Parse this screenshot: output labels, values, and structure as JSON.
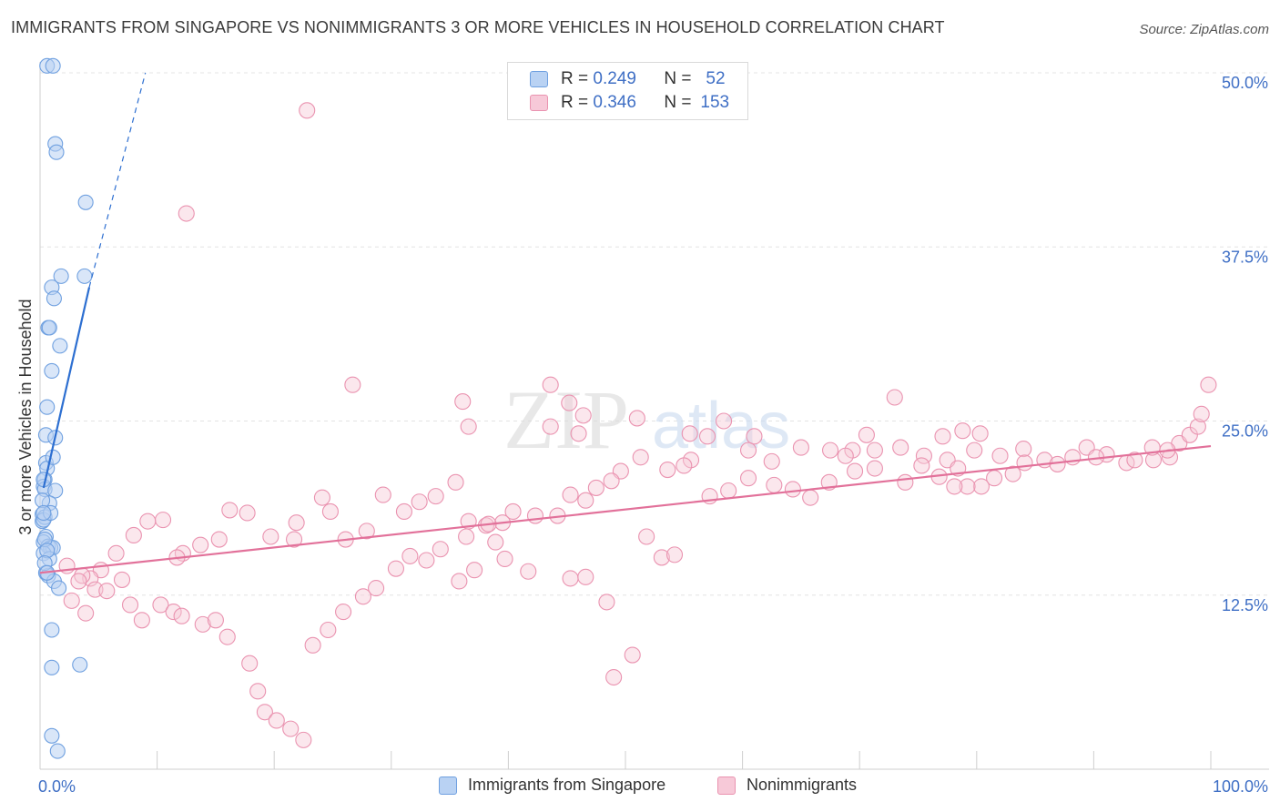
{
  "header": {
    "title": "IMMIGRANTS FROM SINGAPORE VS NONIMMIGRANTS 3 OR MORE VEHICLES IN HOUSEHOLD CORRELATION CHART",
    "source": "Source: ZipAtlas.com"
  },
  "legend_top": {
    "rows": [
      {
        "r_label": "R = ",
        "r_value": "0.249",
        "n_label": "N = ",
        "n_value": "52"
      },
      {
        "r_label": "R = ",
        "r_value": "0.346",
        "n_label": "N = ",
        "n_value": "153"
      }
    ]
  },
  "watermark": {
    "part1": "ZIP",
    "part2": "atlas"
  },
  "colors": {
    "blue": "#6fa0e0",
    "blue_fill": "#b9d2f3",
    "blue_line": "#2d6fd1",
    "pink": "#ea93b0",
    "pink_fill": "#f7c9d8",
    "pink_line": "#e2719a",
    "grid": "#e4e4e4",
    "tick_text": "#3f6fc5"
  },
  "chart_data": {
    "type": "scatter",
    "title": "IMMIGRANTS FROM SINGAPORE VS NONIMMIGRANTS 3 OR MORE VEHICLES IN HOUSEHOLD CORRELATION CHART",
    "xlabel": "",
    "ylabel": "3 or more Vehicles in Household",
    "xlim": [
      0,
      100
    ],
    "ylim": [
      0,
      50
    ],
    "x_tick_labels": [
      "0.0%",
      "100.0%"
    ],
    "y_ticks": [
      12.5,
      25.0,
      37.5,
      50.0
    ],
    "y_tick_labels": [
      "12.5%",
      "25.0%",
      "37.5%",
      "50.0%"
    ],
    "grid": "horizontal dashed",
    "legend": "bottom-center",
    "series": [
      {
        "name": "Immigrants from Singapore",
        "color": "#6fa0e0",
        "R": 0.249,
        "N": 52,
        "trend": {
          "x": [
            0.3,
            4.2
          ],
          "y": [
            20.2,
            34.6
          ]
        },
        "trend_extension": {
          "x": [
            4.2,
            9.0
          ],
          "y": [
            34.6,
            50.0
          ]
        },
        "points": [
          [
            0.6,
            50.5
          ],
          [
            1.1,
            50.5
          ],
          [
            1.3,
            44.9
          ],
          [
            1.4,
            44.3
          ],
          [
            3.9,
            40.7
          ],
          [
            1.8,
            35.4
          ],
          [
            3.8,
            35.4
          ],
          [
            1.0,
            34.6
          ],
          [
            1.2,
            33.8
          ],
          [
            0.7,
            31.7
          ],
          [
            0.8,
            31.7
          ],
          [
            1.7,
            30.4
          ],
          [
            1.0,
            28.6
          ],
          [
            0.6,
            26.0
          ],
          [
            0.5,
            24.0
          ],
          [
            1.3,
            23.8
          ],
          [
            0.5,
            22.0
          ],
          [
            0.6,
            21.6
          ],
          [
            0.4,
            20.8
          ],
          [
            0.3,
            20.3
          ],
          [
            0.4,
            20.1
          ],
          [
            1.3,
            20.0
          ],
          [
            0.8,
            19.1
          ],
          [
            0.2,
            18.3
          ],
          [
            0.2,
            17.8
          ],
          [
            0.4,
            18.1
          ],
          [
            0.5,
            16.7
          ],
          [
            0.3,
            16.3
          ],
          [
            0.7,
            16.0
          ],
          [
            0.9,
            15.9
          ],
          [
            1.1,
            15.9
          ],
          [
            0.3,
            15.5
          ],
          [
            0.8,
            15.1
          ],
          [
            0.5,
            14.1
          ],
          [
            0.7,
            13.9
          ],
          [
            1.2,
            13.5
          ],
          [
            1.6,
            13.0
          ],
          [
            1.0,
            10.0
          ],
          [
            3.4,
            7.5
          ],
          [
            1.0,
            7.3
          ],
          [
            1.0,
            2.4
          ],
          [
            1.5,
            1.3
          ],
          [
            0.3,
            20.8
          ],
          [
            0.3,
            17.9
          ],
          [
            0.4,
            16.5
          ],
          [
            0.6,
            15.7
          ],
          [
            0.2,
            19.3
          ],
          [
            0.9,
            18.4
          ],
          [
            0.4,
            14.8
          ],
          [
            1.1,
            22.4
          ],
          [
            0.3,
            18.4
          ],
          [
            0.6,
            14.1
          ]
        ]
      },
      {
        "name": "Nonimmigrants",
        "color": "#ea93b0",
        "R": 0.346,
        "N": 153,
        "trend": {
          "x": [
            0.0,
            100.0
          ],
          "y": [
            14.1,
            23.2
          ]
        },
        "points": [
          [
            22.8,
            47.3
          ],
          [
            12.5,
            39.9
          ],
          [
            26.7,
            27.6
          ],
          [
            43.6,
            27.6
          ],
          [
            36.1,
            26.4
          ],
          [
            45.2,
            26.3
          ],
          [
            46.4,
            25.4
          ],
          [
            51.0,
            25.2
          ],
          [
            58.4,
            25.0
          ],
          [
            73.0,
            26.7
          ],
          [
            36.6,
            24.6
          ],
          [
            43.6,
            24.6
          ],
          [
            46.0,
            24.1
          ],
          [
            55.5,
            24.1
          ],
          [
            57.0,
            23.9
          ],
          [
            61.0,
            23.9
          ],
          [
            70.6,
            24.0
          ],
          [
            77.1,
            23.9
          ],
          [
            78.8,
            24.3
          ],
          [
            80.3,
            24.1
          ],
          [
            65.0,
            23.1
          ],
          [
            69.4,
            22.9
          ],
          [
            71.3,
            22.9
          ],
          [
            73.5,
            23.1
          ],
          [
            60.5,
            22.9
          ],
          [
            55.6,
            22.2
          ],
          [
            62.5,
            22.1
          ],
          [
            67.5,
            22.9
          ],
          [
            68.8,
            22.5
          ],
          [
            75.5,
            22.5
          ],
          [
            77.5,
            22.2
          ],
          [
            78.4,
            21.6
          ],
          [
            79.8,
            22.9
          ],
          [
            82.0,
            22.5
          ],
          [
            84.0,
            23.0
          ],
          [
            85.8,
            22.2
          ],
          [
            88.2,
            22.4
          ],
          [
            89.4,
            23.1
          ],
          [
            91.1,
            22.6
          ],
          [
            92.8,
            22.0
          ],
          [
            95.1,
            22.2
          ],
          [
            96.5,
            22.4
          ],
          [
            97.3,
            23.4
          ],
          [
            98.2,
            24.0
          ],
          [
            98.9,
            24.6
          ],
          [
            99.2,
            25.5
          ],
          [
            99.8,
            27.6
          ],
          [
            96.3,
            22.9
          ],
          [
            95.0,
            23.1
          ],
          [
            93.5,
            22.2
          ],
          [
            90.2,
            22.4
          ],
          [
            86.9,
            21.9
          ],
          [
            84.1,
            22.0
          ],
          [
            83.1,
            21.2
          ],
          [
            81.5,
            20.9
          ],
          [
            80.4,
            20.3
          ],
          [
            79.2,
            20.3
          ],
          [
            78.1,
            20.3
          ],
          [
            76.8,
            21.0
          ],
          [
            75.3,
            21.8
          ],
          [
            73.9,
            20.6
          ],
          [
            71.3,
            21.6
          ],
          [
            69.6,
            21.4
          ],
          [
            67.4,
            20.6
          ],
          [
            65.8,
            19.5
          ],
          [
            64.3,
            20.1
          ],
          [
            62.7,
            20.4
          ],
          [
            60.5,
            20.9
          ],
          [
            58.8,
            20.0
          ],
          [
            57.2,
            19.6
          ],
          [
            55.0,
            21.8
          ],
          [
            53.6,
            21.5
          ],
          [
            51.3,
            22.4
          ],
          [
            49.6,
            21.4
          ],
          [
            48.8,
            20.7
          ],
          [
            47.5,
            20.2
          ],
          [
            46.6,
            19.3
          ],
          [
            45.3,
            19.7
          ],
          [
            44.2,
            18.2
          ],
          [
            42.3,
            18.2
          ],
          [
            40.4,
            18.5
          ],
          [
            39.5,
            17.7
          ],
          [
            38.1,
            17.5
          ],
          [
            36.6,
            17.8
          ],
          [
            35.5,
            20.6
          ],
          [
            33.8,
            19.6
          ],
          [
            32.4,
            19.2
          ],
          [
            31.1,
            18.5
          ],
          [
            29.3,
            19.7
          ],
          [
            27.9,
            17.1
          ],
          [
            26.1,
            16.5
          ],
          [
            24.8,
            18.5
          ],
          [
            24.1,
            19.5
          ],
          [
            21.9,
            17.7
          ],
          [
            21.7,
            16.5
          ],
          [
            19.7,
            16.7
          ],
          [
            17.7,
            18.4
          ],
          [
            16.2,
            18.6
          ],
          [
            15.3,
            16.5
          ],
          [
            13.7,
            16.1
          ],
          [
            12.2,
            15.5
          ],
          [
            11.7,
            15.2
          ],
          [
            10.5,
            17.9
          ],
          [
            9.2,
            17.8
          ],
          [
            8.0,
            16.8
          ],
          [
            6.5,
            15.5
          ],
          [
            5.2,
            14.3
          ],
          [
            4.3,
            13.7
          ],
          [
            3.6,
            13.9
          ],
          [
            2.7,
            12.1
          ],
          [
            2.3,
            14.6
          ],
          [
            3.3,
            13.5
          ],
          [
            3.9,
            11.2
          ],
          [
            4.7,
            12.9
          ],
          [
            5.7,
            12.8
          ],
          [
            7.0,
            13.6
          ],
          [
            7.7,
            11.8
          ],
          [
            8.7,
            10.7
          ],
          [
            10.3,
            11.8
          ],
          [
            11.4,
            11.3
          ],
          [
            12.1,
            11.0
          ],
          [
            13.9,
            10.4
          ],
          [
            15.0,
            10.7
          ],
          [
            16.0,
            9.5
          ],
          [
            17.9,
            7.6
          ],
          [
            18.6,
            5.6
          ],
          [
            19.2,
            4.1
          ],
          [
            20.2,
            3.5
          ],
          [
            21.4,
            2.9
          ],
          [
            22.5,
            2.1
          ],
          [
            23.3,
            8.9
          ],
          [
            24.6,
            10.0
          ],
          [
            25.9,
            11.3
          ],
          [
            27.6,
            12.4
          ],
          [
            28.7,
            13.0
          ],
          [
            30.4,
            14.4
          ],
          [
            31.6,
            15.3
          ],
          [
            33.0,
            15.0
          ],
          [
            34.2,
            15.8
          ],
          [
            35.8,
            13.5
          ],
          [
            36.4,
            16.7
          ],
          [
            37.1,
            14.3
          ],
          [
            38.3,
            17.6
          ],
          [
            38.9,
            16.3
          ],
          [
            39.7,
            15.1
          ],
          [
            41.7,
            14.2
          ],
          [
            45.3,
            13.7
          ],
          [
            46.6,
            13.8
          ],
          [
            48.4,
            12.0
          ],
          [
            49.0,
            6.6
          ],
          [
            50.6,
            8.2
          ],
          [
            51.8,
            16.7
          ],
          [
            53.1,
            15.2
          ],
          [
            54.2,
            15.4
          ]
        ]
      }
    ]
  },
  "bottom_legend": {
    "items": [
      {
        "label": "Immigrants from Singapore"
      },
      {
        "label": "Nonimmigrants"
      }
    ]
  }
}
